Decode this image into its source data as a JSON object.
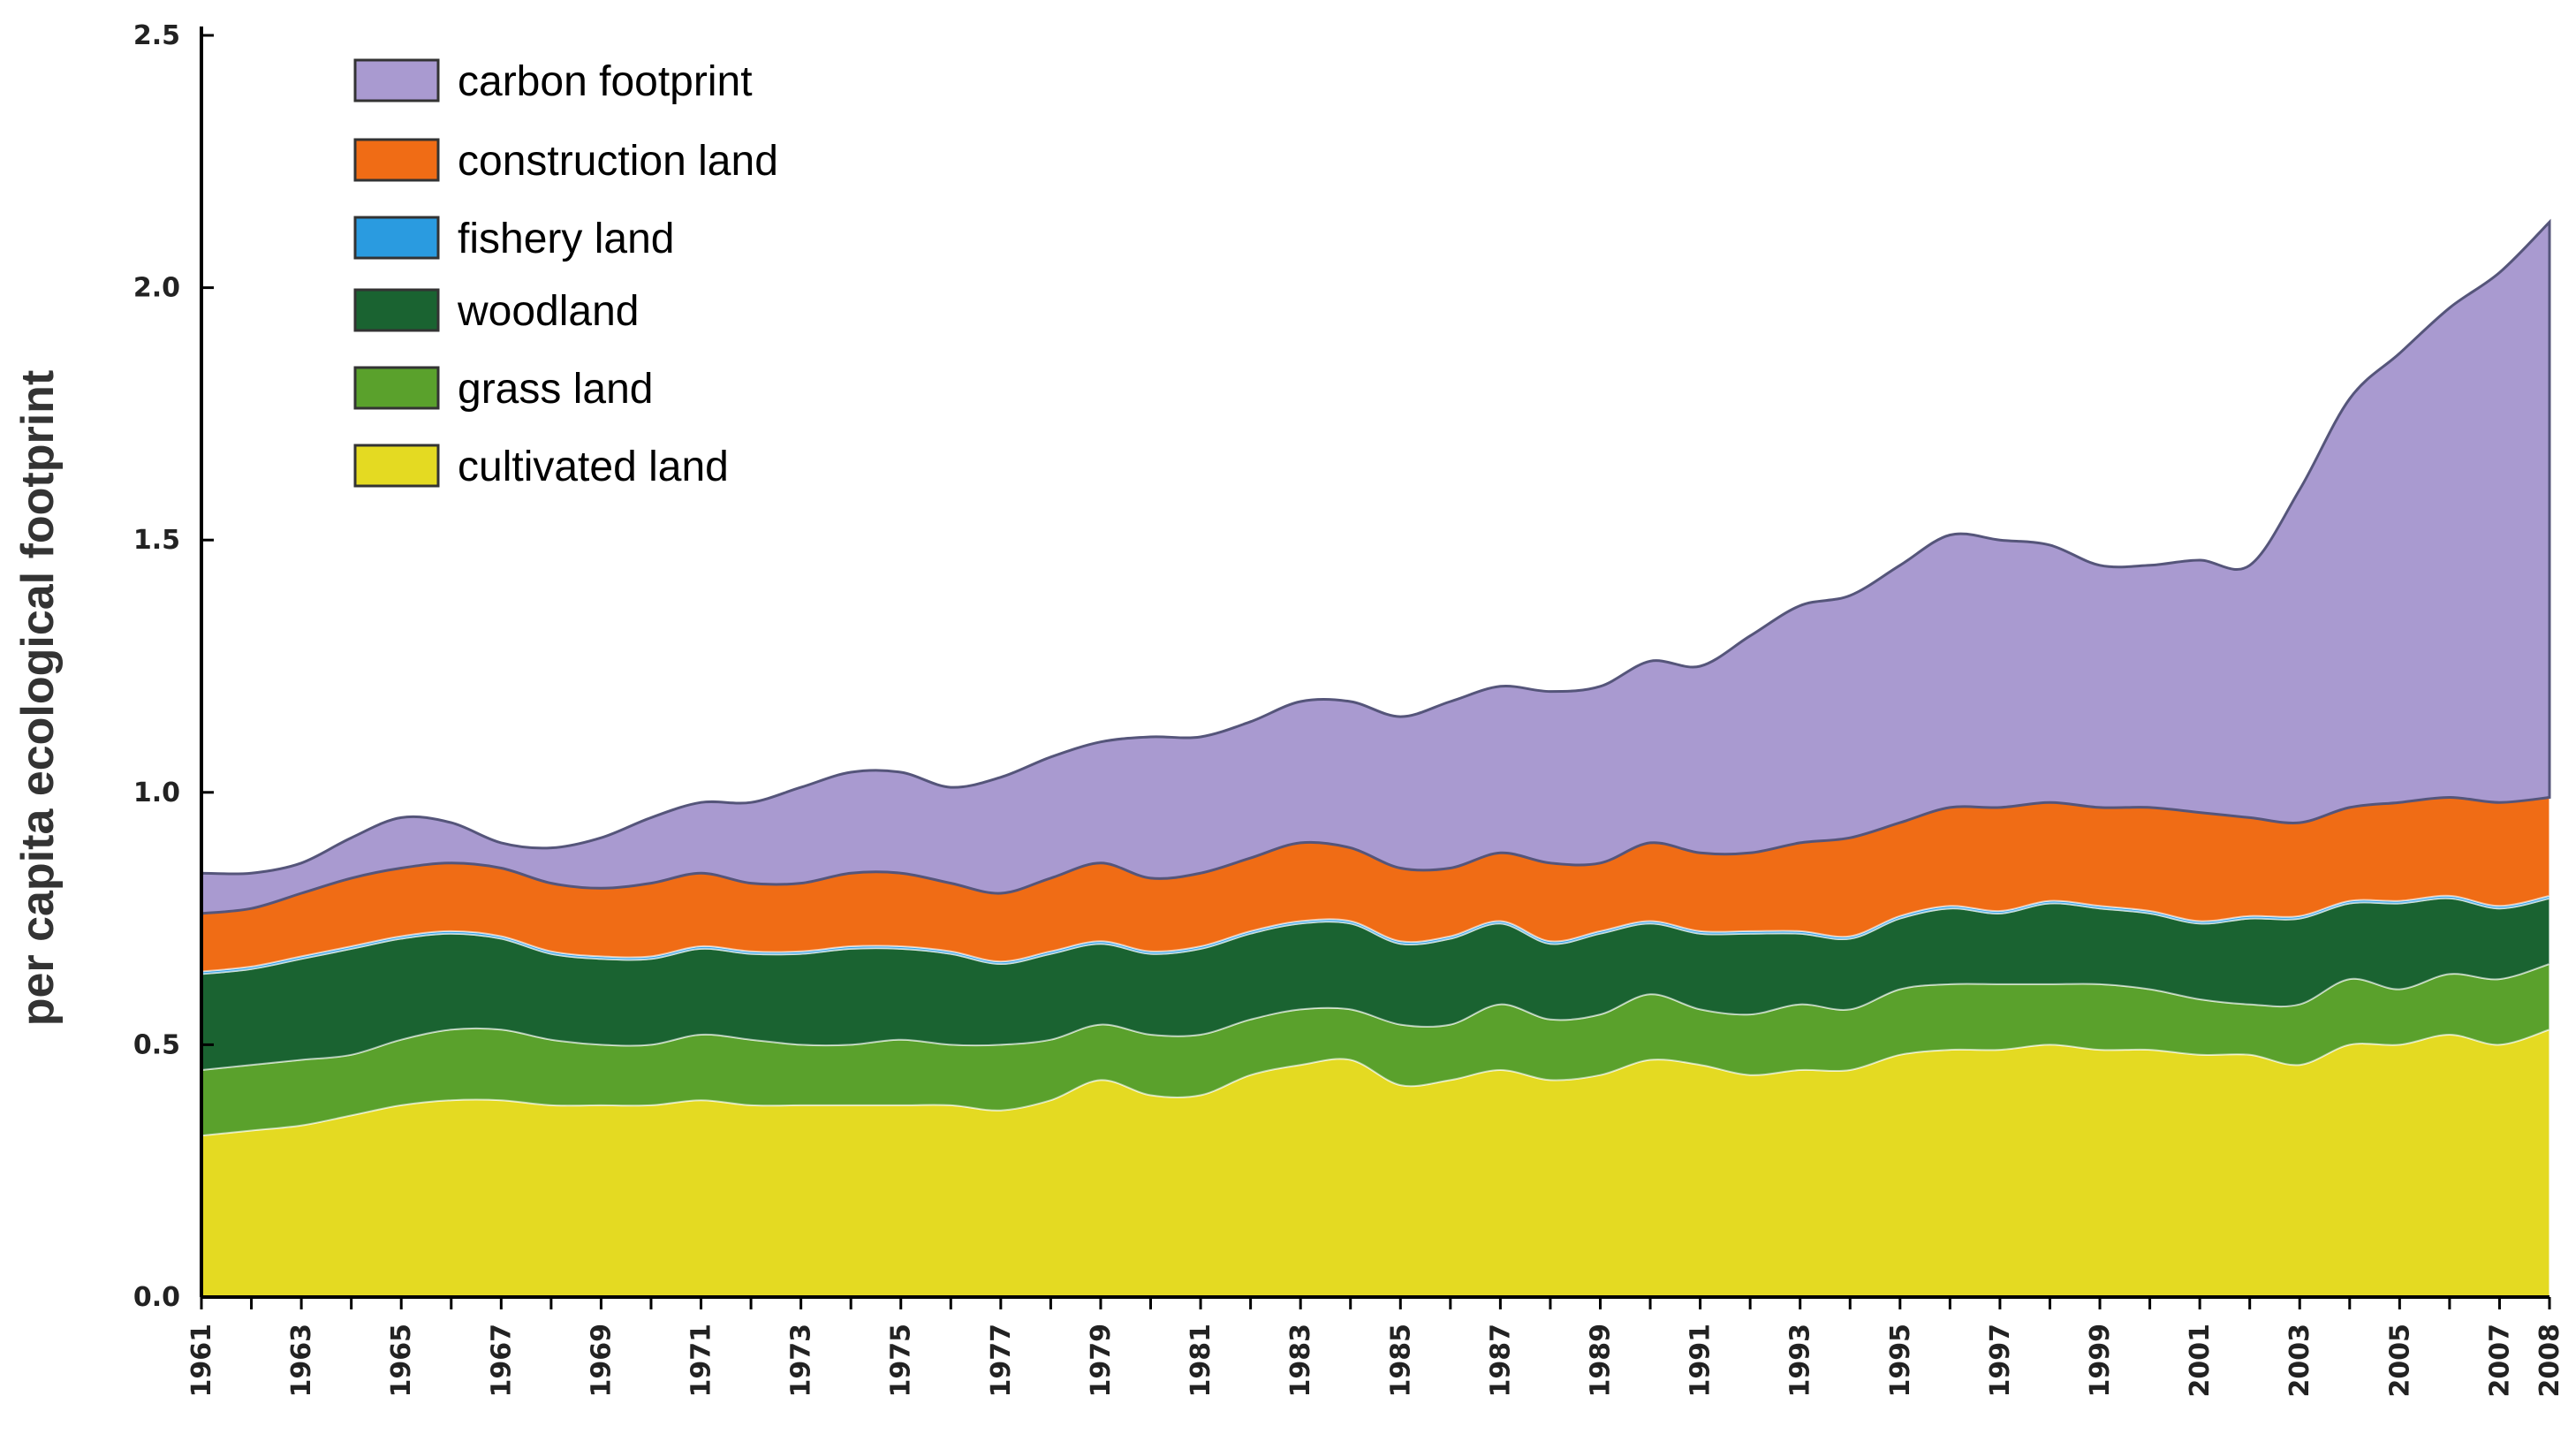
{
  "chart_data": {
    "type": "area",
    "stacked": true,
    "title": "",
    "xlabel": "",
    "ylabel": "per capita ecological footprint",
    "ylim": [
      0,
      2.5
    ],
    "yticks": [
      "0.0",
      "0.5",
      "1.0",
      "1.5",
      "2.0",
      "2.5"
    ],
    "x": [
      1961,
      1962,
      1963,
      1964,
      1965,
      1966,
      1967,
      1968,
      1969,
      1970,
      1971,
      1972,
      1973,
      1974,
      1975,
      1976,
      1977,
      1978,
      1979,
      1980,
      1981,
      1982,
      1983,
      1984,
      1985,
      1986,
      1987,
      1988,
      1989,
      1990,
      1991,
      1992,
      1993,
      1994,
      1995,
      1996,
      1997,
      1998,
      1999,
      2000,
      2001,
      2002,
      2003,
      2004,
      2005,
      2006,
      2007,
      2008
    ],
    "xticks": [
      "1961",
      "1963",
      "1965",
      "1967",
      "1969",
      "1971",
      "1973",
      "1975",
      "1977",
      "1979",
      "1981",
      "1983",
      "1985",
      "1987",
      "1989",
      "1991",
      "1993",
      "1995",
      "1997",
      "1999",
      "2001",
      "2003",
      "2005",
      "2007",
      "2008"
    ],
    "grid": false,
    "legend_position": "top-left",
    "series": [
      {
        "name": "cultivated land",
        "color": "#e4da22",
        "values": [
          0.32,
          0.33,
          0.34,
          0.36,
          0.38,
          0.39,
          0.39,
          0.38,
          0.38,
          0.38,
          0.39,
          0.38,
          0.38,
          0.38,
          0.38,
          0.38,
          0.37,
          0.39,
          0.43,
          0.4,
          0.4,
          0.44,
          0.46,
          0.47,
          0.42,
          0.43,
          0.45,
          0.43,
          0.44,
          0.47,
          0.46,
          0.44,
          0.45,
          0.45,
          0.48,
          0.49,
          0.49,
          0.5,
          0.49,
          0.49,
          0.48,
          0.48,
          0.46,
          0.5,
          0.5,
          0.52,
          0.5,
          0.53
        ]
      },
      {
        "name": "grass land",
        "color": "#5aa12c",
        "values": [
          0.13,
          0.13,
          0.13,
          0.12,
          0.13,
          0.14,
          0.14,
          0.13,
          0.12,
          0.12,
          0.13,
          0.13,
          0.12,
          0.12,
          0.13,
          0.12,
          0.13,
          0.12,
          0.11,
          0.12,
          0.12,
          0.11,
          0.11,
          0.1,
          0.12,
          0.11,
          0.13,
          0.12,
          0.12,
          0.13,
          0.11,
          0.12,
          0.13,
          0.12,
          0.13,
          0.13,
          0.13,
          0.12,
          0.13,
          0.12,
          0.11,
          0.1,
          0.12,
          0.13,
          0.11,
          0.12,
          0.13,
          0.13
        ]
      },
      {
        "name": "woodland",
        "color": "#1a6331",
        "values": [
          0.19,
          0.19,
          0.2,
          0.21,
          0.2,
          0.19,
          0.18,
          0.17,
          0.17,
          0.17,
          0.17,
          0.17,
          0.18,
          0.19,
          0.18,
          0.18,
          0.16,
          0.17,
          0.16,
          0.16,
          0.17,
          0.17,
          0.17,
          0.17,
          0.16,
          0.17,
          0.16,
          0.15,
          0.16,
          0.14,
          0.15,
          0.16,
          0.14,
          0.14,
          0.14,
          0.15,
          0.14,
          0.16,
          0.15,
          0.15,
          0.15,
          0.17,
          0.17,
          0.15,
          0.17,
          0.15,
          0.14,
          0.13
        ]
      },
      {
        "name": "fishery land",
        "color": "#2a9be0",
        "values": [
          0.005,
          0.005,
          0.005,
          0.005,
          0.005,
          0.005,
          0.005,
          0.005,
          0.005,
          0.005,
          0.005,
          0.005,
          0.005,
          0.005,
          0.005,
          0.005,
          0.005,
          0.005,
          0.005,
          0.005,
          0.005,
          0.005,
          0.005,
          0.005,
          0.005,
          0.005,
          0.005,
          0.005,
          0.005,
          0.005,
          0.005,
          0.005,
          0.005,
          0.005,
          0.005,
          0.005,
          0.005,
          0.005,
          0.005,
          0.005,
          0.005,
          0.005,
          0.005,
          0.005,
          0.005,
          0.005,
          0.005,
          0.005
        ]
      },
      {
        "name": "construction land",
        "color": "#f06c15",
        "values": [
          0.115,
          0.115,
          0.125,
          0.135,
          0.135,
          0.135,
          0.135,
          0.135,
          0.135,
          0.145,
          0.145,
          0.135,
          0.135,
          0.145,
          0.145,
          0.135,
          0.135,
          0.145,
          0.155,
          0.145,
          0.145,
          0.145,
          0.155,
          0.145,
          0.145,
          0.135,
          0.135,
          0.155,
          0.135,
          0.155,
          0.155,
          0.155,
          0.175,
          0.195,
          0.185,
          0.195,
          0.205,
          0.195,
          0.195,
          0.205,
          0.215,
          0.195,
          0.185,
          0.185,
          0.195,
          0.195,
          0.205,
          0.195
        ]
      },
      {
        "name": "carbon footprint",
        "color": "#a99ad0",
        "values": [
          0.08,
          0.07,
          0.06,
          0.08,
          0.1,
          0.08,
          0.05,
          0.07,
          0.1,
          0.13,
          0.14,
          0.16,
          0.19,
          0.2,
          0.2,
          0.19,
          0.23,
          0.24,
          0.24,
          0.28,
          0.27,
          0.27,
          0.28,
          0.29,
          0.3,
          0.33,
          0.33,
          0.34,
          0.35,
          0.36,
          0.37,
          0.43,
          0.47,
          0.48,
          0.51,
          0.54,
          0.53,
          0.51,
          0.48,
          0.48,
          0.5,
          0.5,
          0.66,
          0.81,
          0.89,
          0.97,
          1.05,
          1.14
        ]
      }
    ]
  }
}
